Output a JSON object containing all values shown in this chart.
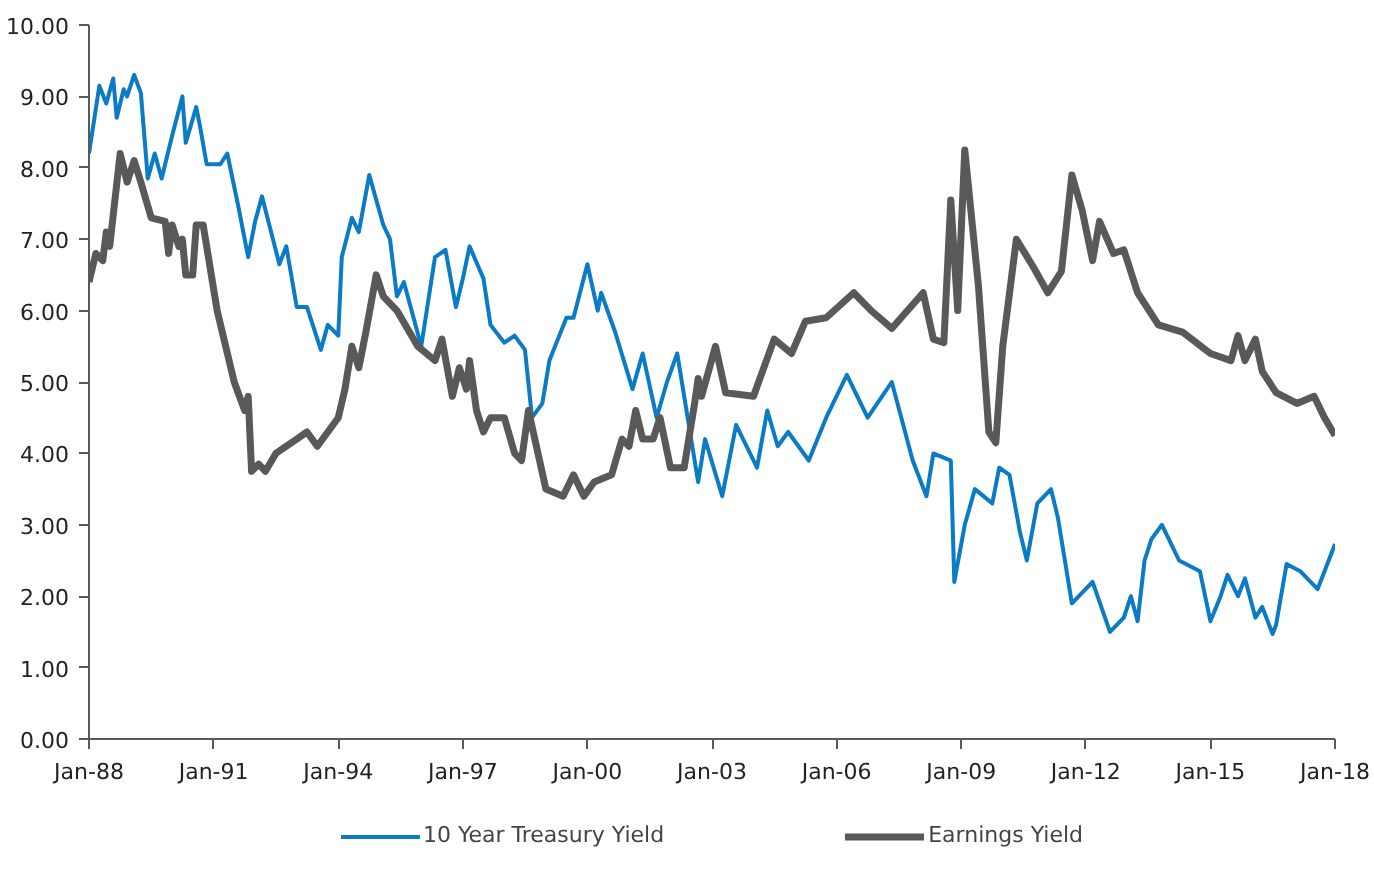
{
  "chart_data": {
    "type": "line",
    "xlim": [
      "1988-01",
      "2018-01"
    ],
    "ylim": [
      0,
      10
    ],
    "xticks": [
      {
        "value": "1988-01",
        "label": "Jan-88"
      },
      {
        "value": "1991-01",
        "label": "Jan-91"
      },
      {
        "value": "1994-01",
        "label": "Jan-94"
      },
      {
        "value": "1997-01",
        "label": "Jan-97"
      },
      {
        "value": "2000-01",
        "label": "Jan-00"
      },
      {
        "value": "2003-01",
        "label": "Jan-03"
      },
      {
        "value": "2006-01",
        "label": "Jan-06"
      },
      {
        "value": "2009-01",
        "label": "Jan-09"
      },
      {
        "value": "2012-01",
        "label": "Jan-12"
      },
      {
        "value": "2015-01",
        "label": "Jan-15"
      },
      {
        "value": "2018-01",
        "label": "Jan-18"
      }
    ],
    "yticks": [
      {
        "value": 0,
        "label": "0.00"
      },
      {
        "value": 1,
        "label": "1.00"
      },
      {
        "value": 2,
        "label": "2.00"
      },
      {
        "value": 3,
        "label": "3.00"
      },
      {
        "value": 4,
        "label": "4.00"
      },
      {
        "value": 5,
        "label": "5.00"
      },
      {
        "value": 6,
        "label": "6.00"
      },
      {
        "value": 7,
        "label": "7.00"
      },
      {
        "value": 8,
        "label": "8.00"
      },
      {
        "value": 9,
        "label": "9.00"
      },
      {
        "value": 10,
        "label": "10.00"
      }
    ],
    "grid": false,
    "legend": "bottom",
    "marker": "none",
    "line_style": "solid",
    "series": [
      {
        "name": "10 Year Treasury Yield",
        "color": "#0a7bc4",
        "x": [
          "1988-01",
          "1988-04",
          "1988-06",
          "1988-08",
          "1988-09",
          "1988-11",
          "1988-12",
          "1989-02",
          "1989-04",
          "1989-06",
          "1989-08",
          "1989-10",
          "1990-01",
          "1990-04",
          "1990-05",
          "1990-08",
          "1990-09",
          "1990-11",
          "1991-03",
          "1991-05",
          "1991-08",
          "1991-11",
          "1992-01",
          "1992-03",
          "1992-08",
          "1992-10",
          "1993-01",
          "1993-04",
          "1993-08",
          "1993-10",
          "1994-01",
          "1994-02",
          "1994-05",
          "1994-07",
          "1994-10",
          "1995-02",
          "1995-04",
          "1995-06",
          "1995-08",
          "1996-01",
          "1996-05",
          "1996-08",
          "1996-11",
          "1997-01",
          "1997-03",
          "1997-07",
          "1997-09",
          "1998-01",
          "1998-04",
          "1998-07",
          "1998-09",
          "1998-12",
          "1999-02",
          "1999-07",
          "1999-09",
          "2000-01",
          "2000-04",
          "2000-05",
          "2000-09",
          "2001-02",
          "2001-05",
          "2001-09",
          "2001-12",
          "2002-03",
          "2002-09",
          "2002-11",
          "2003-04",
          "2003-08",
          "2004-02",
          "2004-05",
          "2004-08",
          "2004-11",
          "2005-05",
          "2005-10",
          "2006-04",
          "2006-10",
          "2007-05",
          "2007-11",
          "2008-03",
          "2008-05",
          "2008-10",
          "2008-11",
          "2009-02",
          "2009-05",
          "2009-10",
          "2009-12",
          "2010-03",
          "2010-06",
          "2010-08",
          "2010-11",
          "2011-03",
          "2011-05",
          "2011-09",
          "2012-03",
          "2012-08",
          "2012-12",
          "2013-02",
          "2013-04",
          "2013-06",
          "2013-08",
          "2013-11",
          "2014-04",
          "2014-10",
          "2015-01",
          "2015-04",
          "2015-06",
          "2015-09",
          "2015-11",
          "2016-02",
          "2016-04",
          "2016-07",
          "2016-08",
          "2016-11",
          "2017-03",
          "2017-08",
          "2017-10",
          "2018-01"
        ],
        "values": [
          8.2,
          9.15,
          8.9,
          9.25,
          8.7,
          9.1,
          9.0,
          9.3,
          9.05,
          7.85,
          8.2,
          7.85,
          8.45,
          9.0,
          8.35,
          8.85,
          8.6,
          8.05,
          8.05,
          8.2,
          7.5,
          6.75,
          7.25,
          7.6,
          6.65,
          6.9,
          6.05,
          6.05,
          5.45,
          5.8,
          5.65,
          6.75,
          7.3,
          7.1,
          7.9,
          7.2,
          7.0,
          6.2,
          6.4,
          5.5,
          6.75,
          6.85,
          6.05,
          6.45,
          6.9,
          6.45,
          5.8,
          5.55,
          5.65,
          5.45,
          4.5,
          4.7,
          5.3,
          5.9,
          5.9,
          6.65,
          6.0,
          6.25,
          5.7,
          4.9,
          5.4,
          4.5,
          5.0,
          5.4,
          3.6,
          4.2,
          3.4,
          4.4,
          3.8,
          4.6,
          4.1,
          4.3,
          3.9,
          4.5,
          5.1,
          4.5,
          5.0,
          3.9,
          3.4,
          4.0,
          3.9,
          2.2,
          3.0,
          3.5,
          3.3,
          3.8,
          3.7,
          2.9,
          2.5,
          3.3,
          3.5,
          3.1,
          1.9,
          2.2,
          1.5,
          1.7,
          2.0,
          1.65,
          2.5,
          2.8,
          3.0,
          2.5,
          2.35,
          1.65,
          2.0,
          2.3,
          2.0,
          2.25,
          1.7,
          1.85,
          1.47,
          1.6,
          2.45,
          2.35,
          2.1,
          2.35,
          2.73
        ]
      },
      {
        "name": "Earnings Yield",
        "color": "#595959",
        "x": [
          "1988-01",
          "1988-03",
          "1988-05",
          "1988-06",
          "1988-07",
          "1988-10",
          "1988-12",
          "1989-02",
          "1989-04",
          "1989-07",
          "1989-11",
          "1989-12",
          "1990-01",
          "1990-03",
          "1990-04",
          "1990-05",
          "1990-07",
          "1990-08",
          "1990-10",
          "1991-02",
          "1991-07",
          "1991-10",
          "1991-11",
          "1991-12",
          "1992-02",
          "1992-04",
          "1992-07",
          "1993-01",
          "1993-04",
          "1993-07",
          "1993-10",
          "1994-01",
          "1994-03",
          "1994-05",
          "1994-07",
          "1994-09",
          "1994-12",
          "1995-02",
          "1995-06",
          "1995-12",
          "1996-05",
          "1996-07",
          "1996-10",
          "1996-12",
          "1997-02",
          "1997-03",
          "1997-05",
          "1997-07",
          "1997-09",
          "1998-01",
          "1998-04",
          "1998-06",
          "1998-08",
          "1999-01",
          "1999-06",
          "1999-09",
          "1999-12",
          "2000-03",
          "2000-08",
          "2000-11",
          "2001-01",
          "2001-03",
          "2001-05",
          "2001-08",
          "2001-10",
          "2002-01",
          "2002-05",
          "2002-08",
          "2002-09",
          "2002-10",
          "2003-02",
          "2003-05",
          "2004-01",
          "2004-07",
          "2004-12",
          "2005-04",
          "2005-10",
          "2006-06",
          "2006-11",
          "2007-05",
          "2008-02",
          "2008-05",
          "2008-08",
          "2008-10",
          "2008-12",
          "2009-02",
          "2009-06",
          "2009-09",
          "2009-11",
          "2010-01",
          "2010-05",
          "2010-10",
          "2011-02",
          "2011-06",
          "2011-09",
          "2011-12",
          "2012-03",
          "2012-05",
          "2012-09",
          "2012-12",
          "2013-04",
          "2013-10",
          "2014-05",
          "2015-01",
          "2015-07",
          "2015-09",
          "2015-11",
          "2016-02",
          "2016-04",
          "2016-08",
          "2017-02",
          "2017-07",
          "2017-10",
          "2018-01"
        ],
        "values": [
          6.4,
          6.8,
          6.7,
          7.1,
          6.9,
          8.2,
          7.8,
          8.1,
          7.8,
          7.3,
          7.25,
          6.8,
          7.2,
          6.9,
          7.0,
          6.5,
          6.5,
          7.2,
          7.2,
          6.0,
          5.0,
          4.6,
          4.8,
          3.75,
          3.85,
          3.75,
          4.0,
          4.2,
          4.3,
          4.1,
          4.3,
          4.5,
          4.9,
          5.5,
          5.2,
          5.7,
          6.5,
          6.2,
          6.0,
          5.5,
          5.3,
          5.6,
          4.8,
          5.2,
          4.9,
          5.3,
          4.6,
          4.3,
          4.5,
          4.5,
          4.0,
          3.9,
          4.6,
          3.5,
          3.4,
          3.7,
          3.4,
          3.6,
          3.7,
          4.2,
          4.1,
          4.6,
          4.2,
          4.2,
          4.5,
          3.8,
          3.8,
          4.7,
          5.05,
          4.8,
          5.5,
          4.85,
          4.8,
          5.6,
          5.4,
          5.85,
          5.9,
          6.25,
          6.0,
          5.75,
          6.25,
          5.6,
          5.55,
          7.55,
          6.0,
          8.25,
          6.35,
          4.3,
          4.15,
          5.5,
          7.0,
          6.6,
          6.25,
          6.55,
          7.9,
          7.4,
          6.7,
          7.25,
          6.8,
          6.85,
          6.25,
          5.8,
          5.7,
          5.4,
          5.3,
          5.65,
          5.3,
          5.6,
          5.15,
          4.85,
          4.7,
          4.8,
          4.5,
          4.25
        ]
      }
    ]
  }
}
